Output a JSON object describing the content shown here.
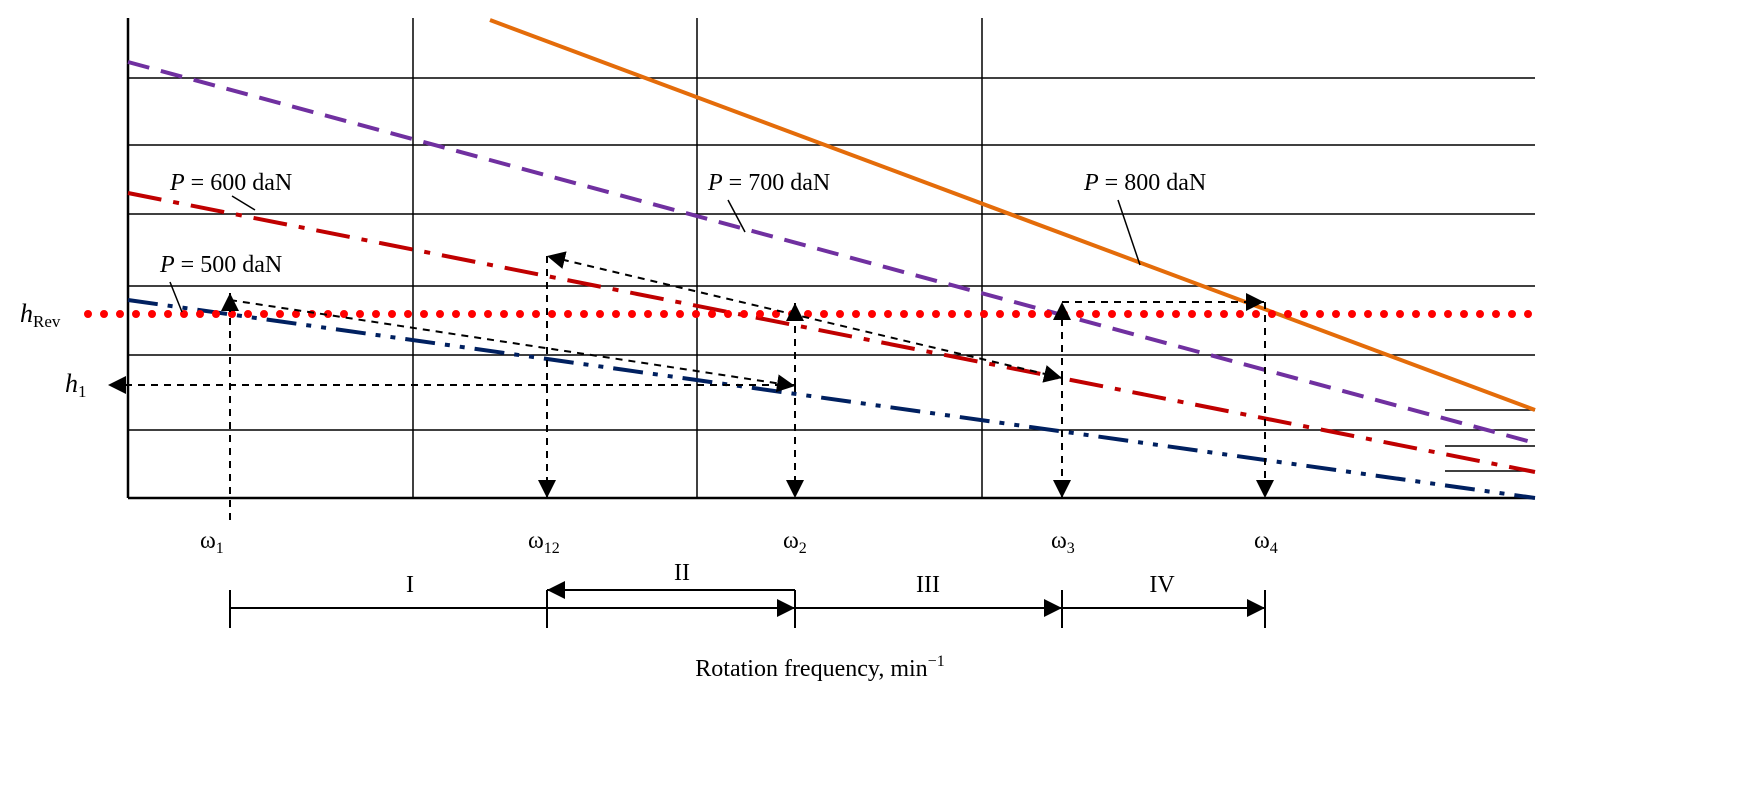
{
  "chart_data": {
    "type": "line",
    "title": "",
    "xlabel": "Rotation frequency, min",
    "xlabel_superscript": "−1",
    "ylabel": "",
    "grid": true,
    "axis_ticks_numeric": false,
    "series": [
      {
        "name": "P = 500 daN",
        "p_var": "P",
        "p_text": " = 500 daN",
        "color": "#002060",
        "style": "dash-dot-dot"
      },
      {
        "name": "P = 600 daN",
        "p_var": "P",
        "p_text": " = 600 daN",
        "color": "#c00000",
        "style": "dash-dot"
      },
      {
        "name": "P = 700 daN",
        "p_var": "P",
        "p_text": " = 700 daN",
        "color": "#7030a0",
        "style": "dashed"
      },
      {
        "name": "P = 800 daN",
        "p_var": "P",
        "p_text": " = 800 daN",
        "color": "#e46c0a",
        "style": "solid"
      }
    ],
    "reference_lines": [
      {
        "label_main": "h",
        "label_sub": "Rev",
        "color": "#ff0000",
        "style": "dotted"
      },
      {
        "label_main": "h",
        "label_sub": "1",
        "color": "#000000",
        "style": "dashed-arrow"
      }
    ],
    "x_markers": [
      {
        "main": "ω",
        "sub": "1"
      },
      {
        "main": "ω",
        "sub": "12"
      },
      {
        "main": "ω",
        "sub": "2"
      },
      {
        "main": "ω",
        "sub": "3"
      },
      {
        "main": "ω",
        "sub": "4"
      }
    ],
    "intervals": [
      "I",
      "II",
      "III",
      "IV"
    ]
  }
}
